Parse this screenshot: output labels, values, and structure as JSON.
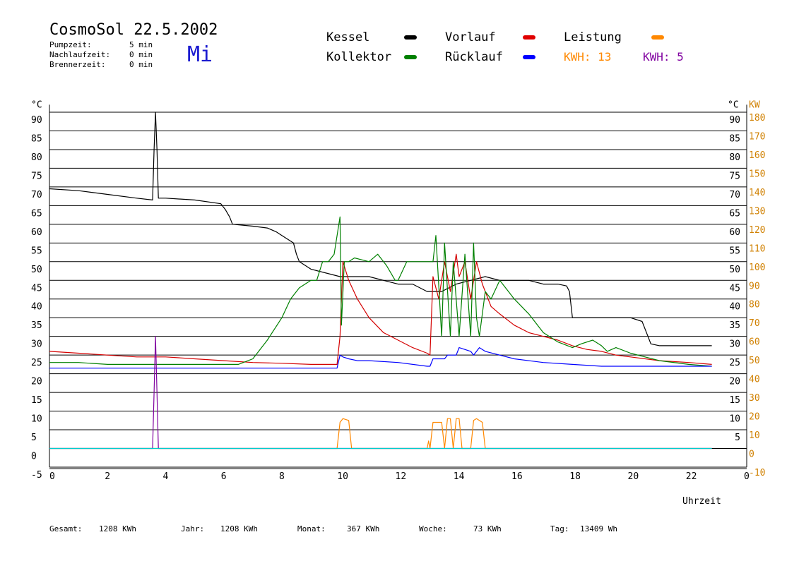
{
  "header": {
    "title": "CosmoSol 22.5.2002",
    "weekday": "Mi",
    "params": [
      {
        "label": "Pumpzeit:",
        "value": "5 min"
      },
      {
        "label": "Nachlaufzeit:",
        "value": "0 min"
      },
      {
        "label": "Brennerzeit:",
        "value": "0 min"
      }
    ]
  },
  "legend": {
    "items": [
      {
        "label": "Kessel",
        "color": "#000000"
      },
      {
        "label": "Vorlauf",
        "color": "#e00000"
      },
      {
        "label": "Leistung",
        "color": "#ff8800"
      },
      {
        "label": "Kollektor",
        "color": "#008000"
      },
      {
        "label": "Rücklauf",
        "color": "#0000ff"
      }
    ],
    "kwh": [
      {
        "label": "KWH:",
        "value": "13",
        "color": "#ff8800"
      },
      {
        "label": "KWH:",
        "value": "5",
        "color": "#8000a0"
      }
    ]
  },
  "footer": {
    "items": [
      {
        "label": "Gesamt:",
        "value": "1208 KWh"
      },
      {
        "label": "Jahr:",
        "value": "1208 KWh"
      },
      {
        "label": "Monat:",
        "value": "367 KWh"
      },
      {
        "label": "Woche:",
        "value": "73 KWh"
      },
      {
        "label": "Tag:",
        "value": "13409 Wh"
      }
    ]
  },
  "chart_data": {
    "type": "line",
    "xlabel": "Uhrzeit",
    "ylabel_left": "°C",
    "ylabel_right_1": "°C",
    "ylabel_right_2": "KW",
    "xlim": [
      0,
      24
    ],
    "ylim": [
      -5,
      95
    ],
    "x_ticks": [
      "0",
      "2",
      "4",
      "6",
      "8",
      "10",
      "12",
      "14",
      "16",
      "18",
      "20",
      "22",
      "0"
    ],
    "y_ticks_left": [
      "90",
      "85",
      "80",
      "75",
      "70",
      "65",
      "60",
      "55",
      "50",
      "45",
      "40",
      "35",
      "30",
      "25",
      "20",
      "15",
      "10",
      "5",
      "0",
      "-5"
    ],
    "y_ticks_right_c": [
      "90",
      "85",
      "80",
      "75",
      "70",
      "65",
      "60",
      "55",
      "50",
      "45",
      "40",
      "35",
      "30",
      "25",
      "20",
      "15",
      "10",
      "5"
    ],
    "y_ticks_right_kw": [
      "180",
      "170",
      "160",
      "150",
      "140",
      "130",
      "120",
      "110",
      "100",
      "90",
      "80",
      "70",
      "60",
      "50",
      "40",
      "30",
      "20",
      "10",
      "0",
      "-10"
    ],
    "grid": true,
    "series": [
      {
        "name": "Kessel",
        "color": "#000000",
        "x": [
          0,
          1,
          2,
          3,
          3.55,
          3.6,
          3.65,
          3.7,
          3.75,
          4,
          5,
          5.9,
          6.05,
          6.2,
          6.3,
          7,
          7.5,
          7.8,
          8,
          8.4,
          8.5,
          8.6,
          9,
          10,
          10.5,
          11,
          11.5,
          12,
          12.5,
          13,
          13.5,
          14,
          14.5,
          15,
          15.5,
          16,
          16.5,
          17,
          17.5,
          17.8,
          17.9,
          18,
          19,
          20,
          20.4,
          20.6,
          20.7,
          21,
          22,
          22.8
        ],
        "y": [
          69.5,
          69,
          68,
          67,
          66.5,
          80,
          90,
          80,
          67,
          67,
          66.5,
          65.5,
          64,
          62,
          60,
          59.5,
          59,
          58,
          57,
          55,
          52,
          50,
          48,
          46,
          46,
          46,
          45,
          44,
          44,
          42,
          42,
          44,
          45,
          46,
          45,
          45,
          45,
          44,
          44,
          43.5,
          42,
          35,
          35,
          35,
          34,
          30,
          28,
          27.5,
          27.5,
          27.5
        ]
      },
      {
        "name": "Vorlauf",
        "color": "#d40000",
        "x": [
          0,
          1,
          2,
          3,
          4,
          5,
          6,
          7,
          8,
          9,
          9.9,
          10,
          10.1,
          10.3,
          10.6,
          11,
          11.5,
          12,
          12.5,
          13,
          13.1,
          13.2,
          13.4,
          13.6,
          13.8,
          14,
          14.1,
          14.3,
          14.5,
          14.7,
          14.9,
          15.2,
          15.5,
          16,
          16.5,
          17,
          17.5,
          18,
          18.5,
          19,
          19.5,
          20,
          21,
          22,
          22.8
        ],
        "y": [
          26,
          25.5,
          25,
          24.5,
          24.5,
          24,
          23.5,
          23,
          22.8,
          22.5,
          22.5,
          30,
          50,
          45,
          40,
          35,
          31,
          29,
          27,
          25.5,
          25,
          46,
          40,
          50,
          42,
          52,
          46,
          50,
          40,
          50,
          44,
          38,
          36,
          33,
          31,
          30,
          29,
          27.5,
          26.5,
          26,
          25,
          24.5,
          23.5,
          23,
          22.5
        ]
      },
      {
        "name": "Kollektor",
        "color": "#008000",
        "x": [
          0,
          1,
          2,
          3,
          3.5,
          4,
          5,
          6,
          6.5,
          7,
          7.5,
          8,
          8.3,
          8.6,
          9,
          9.2,
          9.4,
          9.6,
          9.8,
          10,
          10.05,
          10.15,
          10.3,
          10.5,
          11,
          11.3,
          11.6,
          11.9,
          12,
          12.3,
          12.6,
          13,
          13.2,
          13.3,
          13.5,
          13.6,
          13.8,
          13.9,
          14.1,
          14.3,
          14.5,
          14.6,
          14.7,
          14.8,
          15,
          15.2,
          15.5,
          16,
          16.5,
          17,
          17.5,
          18,
          18.3,
          18.7,
          19,
          19.2,
          19.5,
          20,
          20.5,
          21,
          22,
          22.8
        ],
        "y": [
          23,
          23,
          22.5,
          22.5,
          22.5,
          22.5,
          22.5,
          22.5,
          22.5,
          24,
          29,
          35,
          40,
          43,
          45,
          45,
          50,
          50,
          52,
          62,
          33,
          50,
          50,
          51,
          50,
          52,
          49,
          45,
          45,
          50,
          50,
          50,
          50,
          57,
          30,
          55,
          30,
          50,
          30,
          52,
          30,
          55,
          35,
          30,
          42,
          40,
          45,
          40,
          36,
          31,
          28.5,
          27,
          28,
          29,
          27.5,
          26,
          27,
          25.5,
          24.5,
          23.5,
          22.5,
          22
        ]
      },
      {
        "name": "Rücklauf",
        "color": "#0000ff",
        "x": [
          0,
          1,
          2,
          3,
          4,
          5,
          6,
          7,
          8,
          9,
          9.9,
          10,
          10.1,
          10.3,
          10.6,
          11,
          12,
          13,
          13.1,
          13.2,
          13.4,
          13.6,
          13.7,
          14,
          14.1,
          14.5,
          14.6,
          14.8,
          15,
          16,
          17,
          18,
          19,
          20,
          21,
          22,
          22.8
        ],
        "y": [
          21.5,
          21.5,
          21.5,
          21.5,
          21.5,
          21.5,
          21.5,
          21.5,
          21.5,
          21.5,
          21.5,
          25,
          24.5,
          24,
          23.5,
          23.5,
          23,
          22,
          22,
          24,
          24,
          24,
          25,
          25,
          27,
          26,
          25,
          27,
          26,
          24,
          23,
          22.5,
          22,
          22,
          22,
          22,
          22
        ]
      },
      {
        "name": "Leistung",
        "color": "#ff8800",
        "unit": "KW",
        "x": [
          0,
          9.9,
          10,
          10.1,
          10.3,
          10.4,
          13,
          13.05,
          13.1,
          13.2,
          13.5,
          13.6,
          13.7,
          13.8,
          13.9,
          14,
          14.1,
          14.2,
          14.5,
          14.6,
          14.7,
          14.9,
          15,
          22.8
        ],
        "y": [
          0,
          0,
          14,
          16,
          15,
          0,
          0,
          4,
          0,
          14,
          14,
          0,
          16,
          16,
          0,
          16,
          16,
          0,
          0,
          15,
          16,
          14,
          0,
          0
        ]
      },
      {
        "name": "KWH 5",
        "color": "#8000a0",
        "x": [
          0,
          3.55,
          3.6,
          3.65,
          3.7,
          3.75,
          22.8
        ],
        "y": [
          0,
          0,
          15,
          30,
          15,
          0,
          0
        ]
      },
      {
        "name": "Baseline",
        "color": "#00cccc",
        "x": [
          0,
          22.8
        ],
        "y": [
          0,
          0
        ]
      }
    ]
  }
}
